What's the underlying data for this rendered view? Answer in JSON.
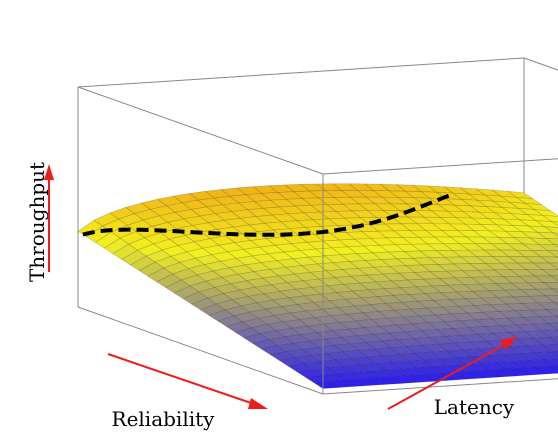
{
  "chart_data": {
    "type": "surface",
    "title": "",
    "xlabel": "Reliability",
    "ylabel": "Latency",
    "zlabel": "Throughput",
    "grid": false,
    "legend": "none",
    "colormap": [
      "#2a1cf0",
      "#f2f020",
      "#f07a10",
      "#f01010"
    ],
    "annotations": {
      "dashed_curve_color": "#000000",
      "axis_arrow_color": "#ee1c1c"
    }
  }
}
